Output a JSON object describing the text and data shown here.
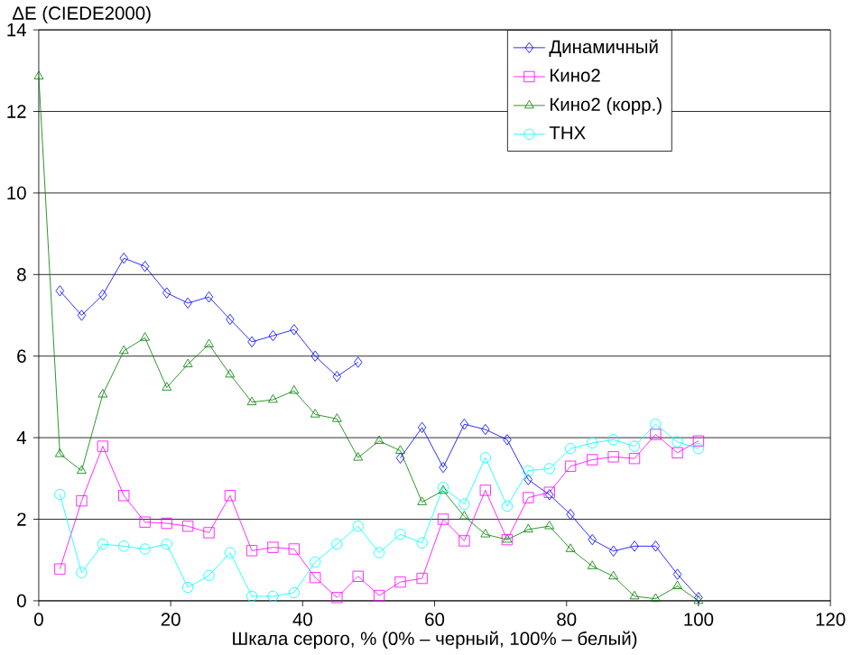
{
  "chart_data": {
    "type": "line",
    "ylabel": "ΔE (CIEDE2000)",
    "xlabel": "Шкала серого, % (0% – черный, 100% – белый)",
    "x": [
      0,
      3.2,
      6.5,
      9.7,
      12.9,
      16.1,
      19.4,
      22.6,
      25.8,
      29.0,
      32.3,
      35.5,
      38.7,
      41.9,
      45.2,
      48.4,
      51.6,
      54.8,
      58.1,
      61.3,
      64.5,
      67.7,
      71.0,
      74.2,
      77.4,
      80.6,
      83.9,
      87.1,
      90.3,
      93.5,
      96.8,
      100
    ],
    "series": [
      {
        "name": "Динамичный",
        "color": "#0000ff",
        "marker": "diamond",
        "values": [
          null,
          7.6,
          7.0,
          7.5,
          8.4,
          8.2,
          7.55,
          7.3,
          7.45,
          6.9,
          6.35,
          6.5,
          6.65,
          6.0,
          5.5,
          5.85,
          null,
          3.5,
          4.25,
          3.27,
          4.33,
          4.2,
          3.95,
          2.97,
          2.6,
          2.12,
          1.5,
          1.22,
          1.34,
          1.34,
          0.65,
          0.08
        ]
      },
      {
        "name": "Кино2",
        "color": "#ff00ff",
        "marker": "square",
        "values": [
          null,
          0.78,
          2.45,
          3.79,
          2.58,
          1.93,
          1.9,
          1.83,
          1.67,
          2.58,
          1.23,
          1.31,
          1.27,
          0.57,
          0.08,
          0.6,
          0.13,
          0.46,
          0.55,
          2.0,
          1.47,
          2.71,
          1.5,
          2.53,
          2.66,
          3.3,
          3.46,
          3.53,
          3.49,
          4.08,
          3.63,
          3.92
        ]
      },
      {
        "name": "Кино2 (корр.)",
        "color": "#008000",
        "marker": "triangle",
        "values": [
          12.86,
          3.6,
          3.19,
          5.06,
          6.13,
          6.45,
          5.23,
          5.8,
          6.29,
          5.55,
          4.87,
          4.93,
          5.15,
          4.57,
          4.46,
          3.51,
          3.92,
          3.68,
          2.42,
          2.7,
          2.07,
          1.63,
          1.5,
          1.75,
          1.83,
          1.27,
          0.85,
          0.6,
          0.11,
          0.05,
          0.36,
          0.0
        ]
      },
      {
        "name": "THX",
        "color": "#00ffff",
        "marker": "circle",
        "values": [
          null,
          2.61,
          0.69,
          1.39,
          1.34,
          1.27,
          1.39,
          0.33,
          0.62,
          1.18,
          0.11,
          0.11,
          0.2,
          0.95,
          1.39,
          1.83,
          1.18,
          1.63,
          1.42,
          2.78,
          2.37,
          3.51,
          2.32,
          3.19,
          3.24,
          3.73,
          3.87,
          3.95,
          3.79,
          4.33,
          3.9,
          3.73
        ]
      }
    ],
    "xlim": [
      0,
      120
    ],
    "xticks": [
      0,
      20,
      40,
      60,
      80,
      100,
      120
    ],
    "ylim": [
      0,
      14
    ],
    "yticks": [
      0,
      2,
      4,
      6,
      8,
      10,
      12,
      14
    ],
    "grid": "y",
    "legend": "top right"
  }
}
